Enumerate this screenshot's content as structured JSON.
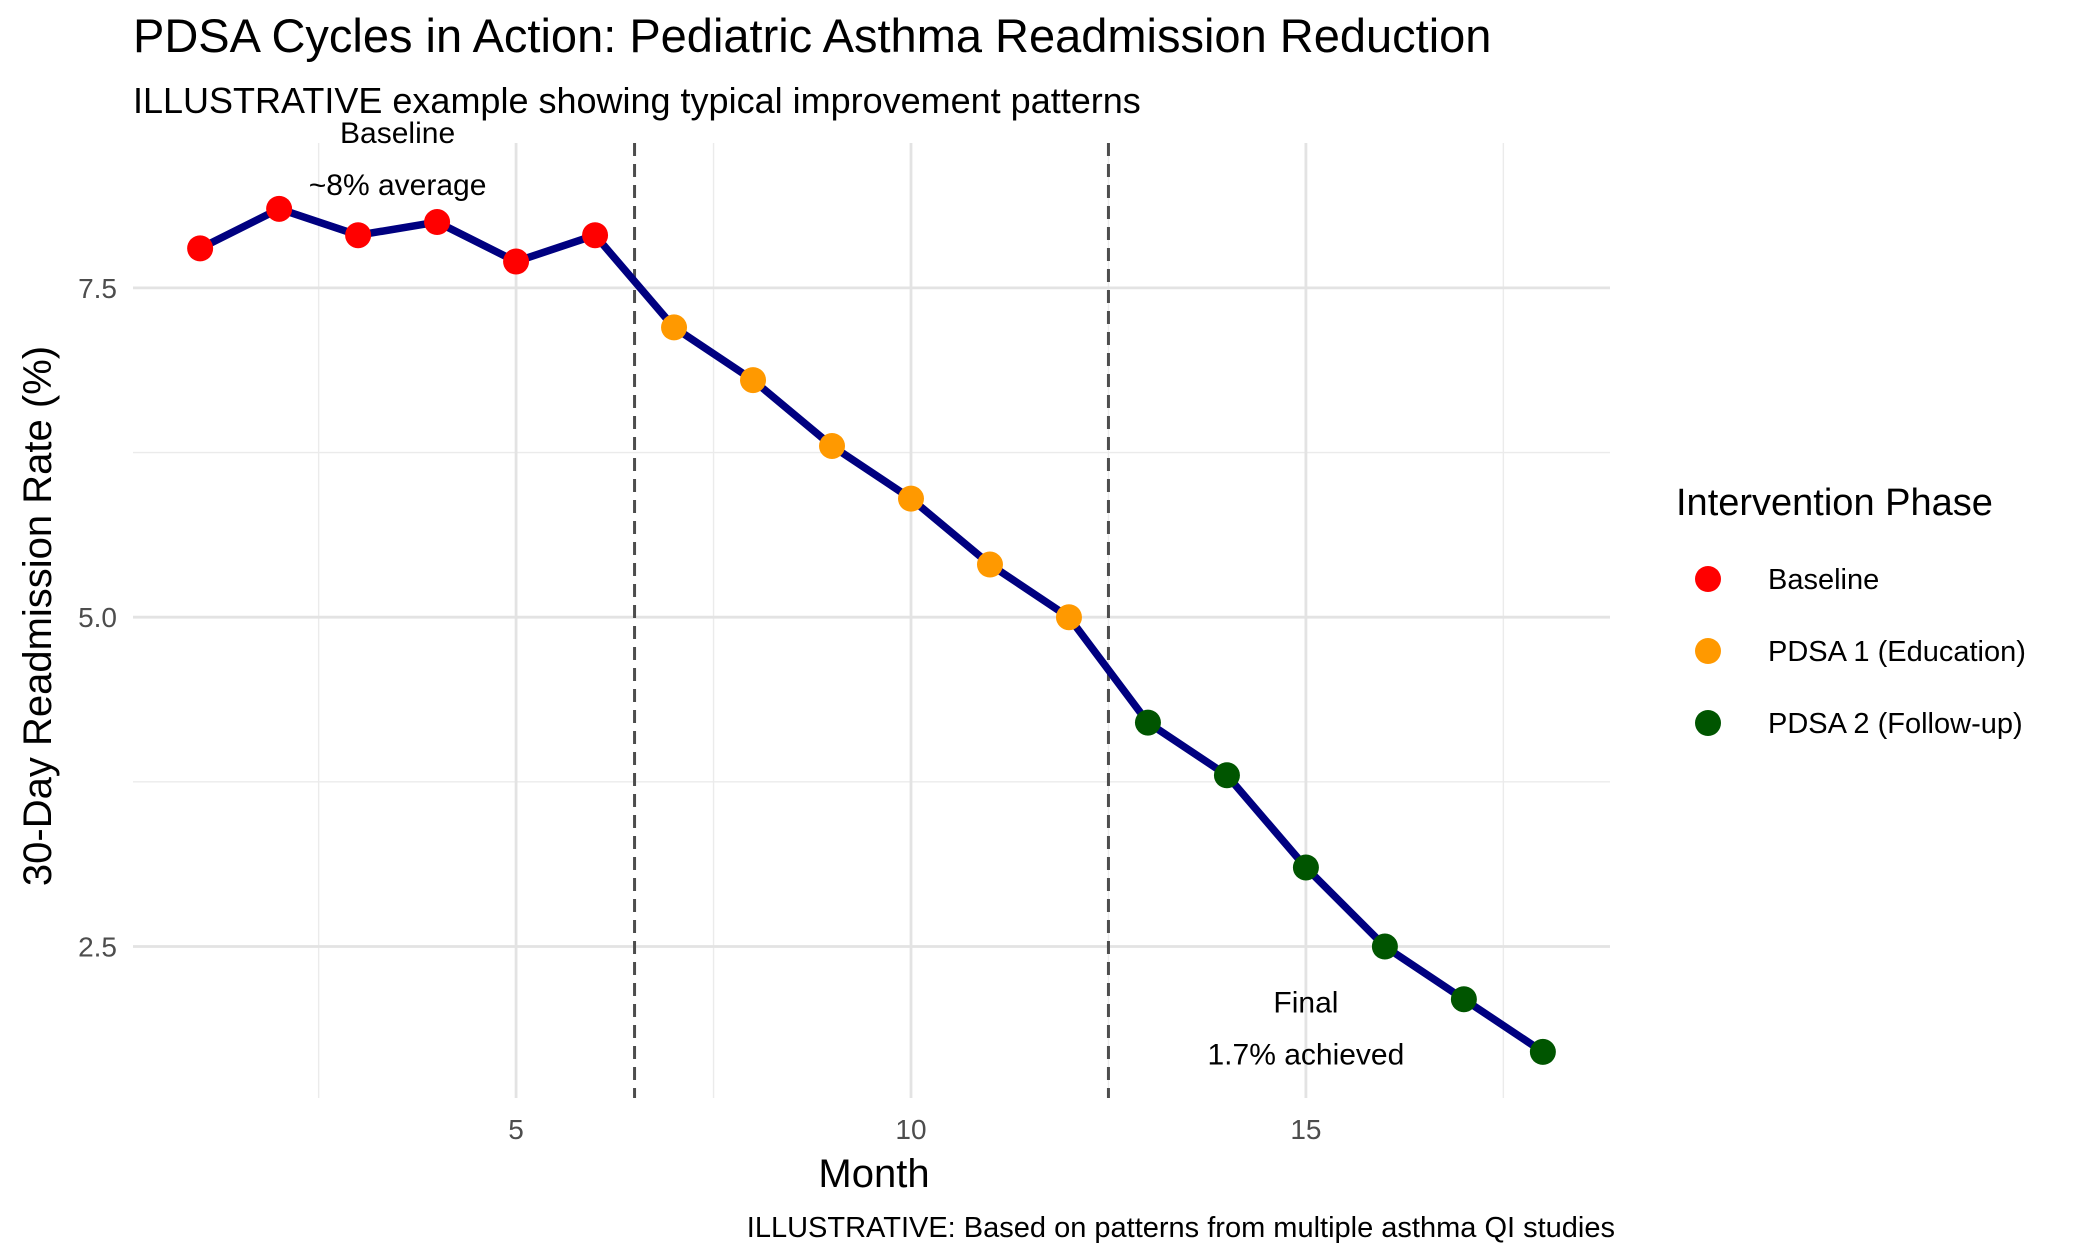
{
  "chart_data": {
    "type": "line",
    "title": "PDSA Cycles in Action: Pediatric Asthma Readmission Reduction",
    "subtitle": "ILLUSTRATIVE example showing typical improvement patterns",
    "xlabel": "Month",
    "ylabel": "30-Day Readmission Rate (%)",
    "caption": "ILLUSTRATIVE: Based on patterns from multiple asthma QI studies",
    "xlim": [
      0.15,
      18.85
    ],
    "ylim": [
      1.35,
      8.6
    ],
    "x_ticks": [
      5,
      10,
      15
    ],
    "x_tick_labels": [
      "5",
      "10",
      "15"
    ],
    "y_ticks": [
      2.5,
      5.0,
      7.5
    ],
    "y_tick_labels": [
      "2.5",
      "5.0",
      "7.5"
    ],
    "grid": true,
    "line_color": "#000080",
    "phase_lines": [
      6.5,
      12.5
    ],
    "series": [
      {
        "name": "Baseline",
        "color": "#ff0000",
        "x": [
          1,
          2,
          3,
          4,
          5,
          6
        ],
        "y": [
          7.8,
          8.1,
          7.9,
          8.0,
          7.7,
          7.9
        ]
      },
      {
        "name": "PDSA 1 (Education)",
        "color": "#ff9900",
        "x": [
          7,
          8,
          9,
          10,
          11,
          12
        ],
        "y": [
          7.2,
          6.8,
          6.3,
          5.9,
          5.4,
          5.0
        ]
      },
      {
        "name": "PDSA 2 (Follow-up)",
        "color": "#005500",
        "x": [
          13,
          14,
          15,
          16,
          17,
          18
        ],
        "y": [
          4.2,
          3.8,
          3.1,
          2.5,
          2.1,
          1.7
        ]
      }
    ],
    "annotations": [
      {
        "lines": [
          "Baseline",
          "~8% average"
        ],
        "x": 3.5,
        "y": 8.6
      },
      {
        "lines": [
          "Final",
          "1.7% achieved"
        ],
        "x": 15,
        "y": 2.0
      }
    ],
    "legend": {
      "title": "Intervention Phase",
      "position": "right",
      "items": [
        "Baseline",
        "PDSA 1 (Education)",
        "PDSA 2 (Follow-up)"
      ]
    }
  }
}
